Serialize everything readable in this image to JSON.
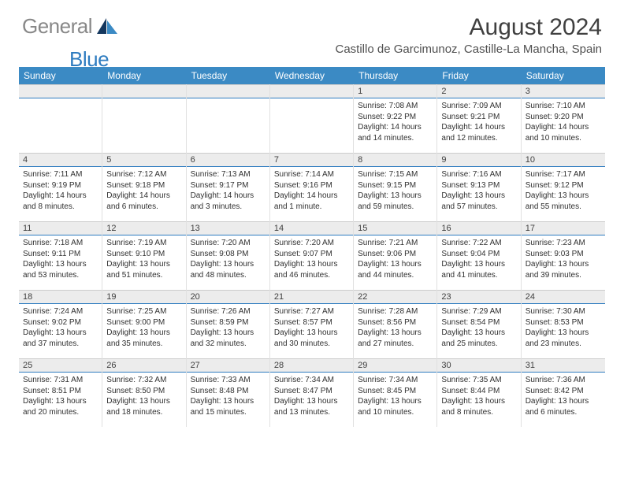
{
  "logo": {
    "text1": "General",
    "text2": "Blue"
  },
  "title": "August 2024",
  "location": "Castillo de Garcimunoz, Castille-La Mancha, Spain",
  "dayNames": [
    "Sunday",
    "Monday",
    "Tuesday",
    "Wednesday",
    "Thursday",
    "Friday",
    "Saturday"
  ],
  "colors": {
    "headerBg": "#3b8ac4",
    "headerText": "#ffffff",
    "dayRowBg": "#ececec",
    "dayRowBorder": "#2e7cc0",
    "bodyText": "#303030",
    "titleText": "#404040",
    "logoGray": "#888888",
    "logoBlue": "#2e7cc0"
  },
  "weeks": [
    [
      {
        "n": "",
        "sr": "",
        "ss": "",
        "dl": ""
      },
      {
        "n": "",
        "sr": "",
        "ss": "",
        "dl": ""
      },
      {
        "n": "",
        "sr": "",
        "ss": "",
        "dl": ""
      },
      {
        "n": "",
        "sr": "",
        "ss": "",
        "dl": ""
      },
      {
        "n": "1",
        "sr": "Sunrise: 7:08 AM",
        "ss": "Sunset: 9:22 PM",
        "dl": "Daylight: 14 hours and 14 minutes."
      },
      {
        "n": "2",
        "sr": "Sunrise: 7:09 AM",
        "ss": "Sunset: 9:21 PM",
        "dl": "Daylight: 14 hours and 12 minutes."
      },
      {
        "n": "3",
        "sr": "Sunrise: 7:10 AM",
        "ss": "Sunset: 9:20 PM",
        "dl": "Daylight: 14 hours and 10 minutes."
      }
    ],
    [
      {
        "n": "4",
        "sr": "Sunrise: 7:11 AM",
        "ss": "Sunset: 9:19 PM",
        "dl": "Daylight: 14 hours and 8 minutes."
      },
      {
        "n": "5",
        "sr": "Sunrise: 7:12 AM",
        "ss": "Sunset: 9:18 PM",
        "dl": "Daylight: 14 hours and 6 minutes."
      },
      {
        "n": "6",
        "sr": "Sunrise: 7:13 AM",
        "ss": "Sunset: 9:17 PM",
        "dl": "Daylight: 14 hours and 3 minutes."
      },
      {
        "n": "7",
        "sr": "Sunrise: 7:14 AM",
        "ss": "Sunset: 9:16 PM",
        "dl": "Daylight: 14 hours and 1 minute."
      },
      {
        "n": "8",
        "sr": "Sunrise: 7:15 AM",
        "ss": "Sunset: 9:15 PM",
        "dl": "Daylight: 13 hours and 59 minutes."
      },
      {
        "n": "9",
        "sr": "Sunrise: 7:16 AM",
        "ss": "Sunset: 9:13 PM",
        "dl": "Daylight: 13 hours and 57 minutes."
      },
      {
        "n": "10",
        "sr": "Sunrise: 7:17 AM",
        "ss": "Sunset: 9:12 PM",
        "dl": "Daylight: 13 hours and 55 minutes."
      }
    ],
    [
      {
        "n": "11",
        "sr": "Sunrise: 7:18 AM",
        "ss": "Sunset: 9:11 PM",
        "dl": "Daylight: 13 hours and 53 minutes."
      },
      {
        "n": "12",
        "sr": "Sunrise: 7:19 AM",
        "ss": "Sunset: 9:10 PM",
        "dl": "Daylight: 13 hours and 51 minutes."
      },
      {
        "n": "13",
        "sr": "Sunrise: 7:20 AM",
        "ss": "Sunset: 9:08 PM",
        "dl": "Daylight: 13 hours and 48 minutes."
      },
      {
        "n": "14",
        "sr": "Sunrise: 7:20 AM",
        "ss": "Sunset: 9:07 PM",
        "dl": "Daylight: 13 hours and 46 minutes."
      },
      {
        "n": "15",
        "sr": "Sunrise: 7:21 AM",
        "ss": "Sunset: 9:06 PM",
        "dl": "Daylight: 13 hours and 44 minutes."
      },
      {
        "n": "16",
        "sr": "Sunrise: 7:22 AM",
        "ss": "Sunset: 9:04 PM",
        "dl": "Daylight: 13 hours and 41 minutes."
      },
      {
        "n": "17",
        "sr": "Sunrise: 7:23 AM",
        "ss": "Sunset: 9:03 PM",
        "dl": "Daylight: 13 hours and 39 minutes."
      }
    ],
    [
      {
        "n": "18",
        "sr": "Sunrise: 7:24 AM",
        "ss": "Sunset: 9:02 PM",
        "dl": "Daylight: 13 hours and 37 minutes."
      },
      {
        "n": "19",
        "sr": "Sunrise: 7:25 AM",
        "ss": "Sunset: 9:00 PM",
        "dl": "Daylight: 13 hours and 35 minutes."
      },
      {
        "n": "20",
        "sr": "Sunrise: 7:26 AM",
        "ss": "Sunset: 8:59 PM",
        "dl": "Daylight: 13 hours and 32 minutes."
      },
      {
        "n": "21",
        "sr": "Sunrise: 7:27 AM",
        "ss": "Sunset: 8:57 PM",
        "dl": "Daylight: 13 hours and 30 minutes."
      },
      {
        "n": "22",
        "sr": "Sunrise: 7:28 AM",
        "ss": "Sunset: 8:56 PM",
        "dl": "Daylight: 13 hours and 27 minutes."
      },
      {
        "n": "23",
        "sr": "Sunrise: 7:29 AM",
        "ss": "Sunset: 8:54 PM",
        "dl": "Daylight: 13 hours and 25 minutes."
      },
      {
        "n": "24",
        "sr": "Sunrise: 7:30 AM",
        "ss": "Sunset: 8:53 PM",
        "dl": "Daylight: 13 hours and 23 minutes."
      }
    ],
    [
      {
        "n": "25",
        "sr": "Sunrise: 7:31 AM",
        "ss": "Sunset: 8:51 PM",
        "dl": "Daylight: 13 hours and 20 minutes."
      },
      {
        "n": "26",
        "sr": "Sunrise: 7:32 AM",
        "ss": "Sunset: 8:50 PM",
        "dl": "Daylight: 13 hours and 18 minutes."
      },
      {
        "n": "27",
        "sr": "Sunrise: 7:33 AM",
        "ss": "Sunset: 8:48 PM",
        "dl": "Daylight: 13 hours and 15 minutes."
      },
      {
        "n": "28",
        "sr": "Sunrise: 7:34 AM",
        "ss": "Sunset: 8:47 PM",
        "dl": "Daylight: 13 hours and 13 minutes."
      },
      {
        "n": "29",
        "sr": "Sunrise: 7:34 AM",
        "ss": "Sunset: 8:45 PM",
        "dl": "Daylight: 13 hours and 10 minutes."
      },
      {
        "n": "30",
        "sr": "Sunrise: 7:35 AM",
        "ss": "Sunset: 8:44 PM",
        "dl": "Daylight: 13 hours and 8 minutes."
      },
      {
        "n": "31",
        "sr": "Sunrise: 7:36 AM",
        "ss": "Sunset: 8:42 PM",
        "dl": "Daylight: 13 hours and 6 minutes."
      }
    ]
  ]
}
